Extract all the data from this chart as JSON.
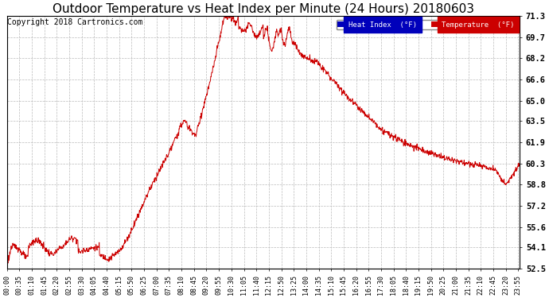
{
  "title": "Outdoor Temperature vs Heat Index per Minute (24 Hours) 20180603",
  "copyright": "Copyright 2018 Cartronics.com",
  "yticks": [
    52.5,
    54.1,
    55.6,
    57.2,
    58.8,
    60.3,
    61.9,
    63.5,
    65.0,
    66.6,
    68.2,
    69.7,
    71.3
  ],
  "ylim": [
    52.5,
    71.3
  ],
  "legend_labels": [
    "Heat Index  (°F)",
    "Temperature  (°F)"
  ],
  "legend_bg_colors": [
    "#0000bb",
    "#cc0000"
  ],
  "line_color": "#cc0000",
  "bg_color": "#ffffff",
  "plot_bg_color": "#ffffff",
  "grid_color": "#bbbbbb",
  "title_fontsize": 11,
  "copyright_fontsize": 7,
  "x_tick_interval": 35,
  "minutes_per_day": 1440
}
